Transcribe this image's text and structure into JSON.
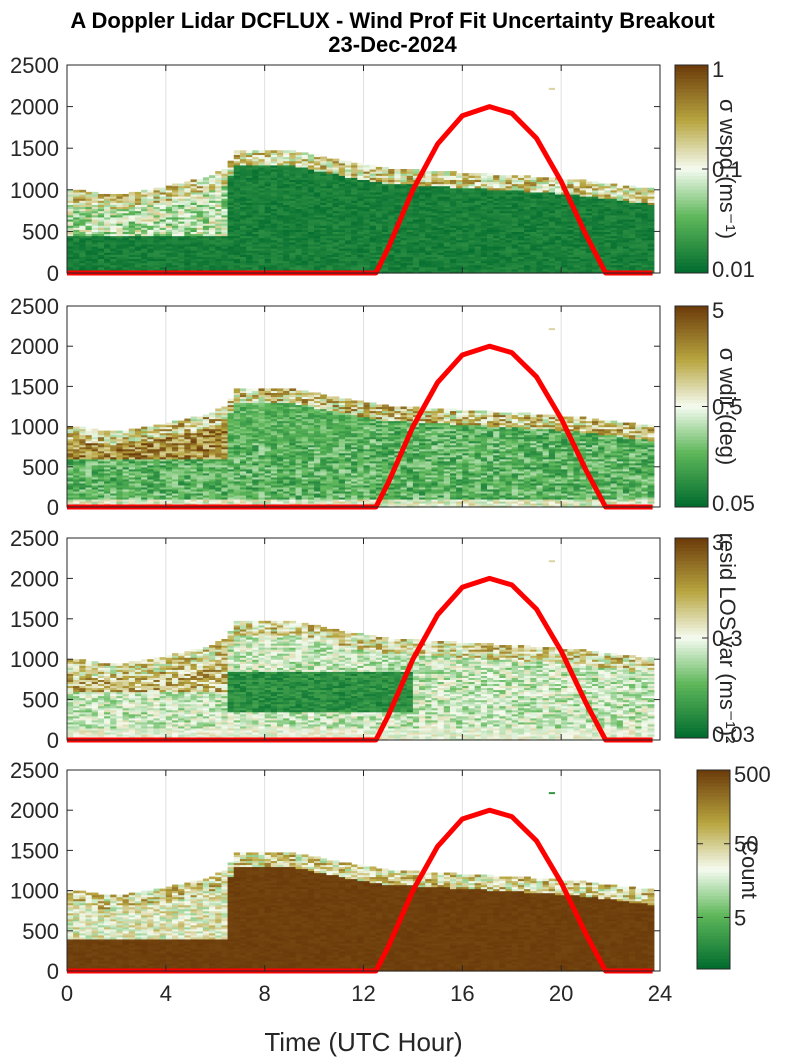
{
  "title_line1": "A Doppler Lidar DCFLUX - Wind Prof Fit Uncertainty Breakout",
  "title_line2": "23-Dec-2024",
  "colors": {
    "low": "#006b2e",
    "mid_low": "#5fb85a",
    "white": "#f5fbf0",
    "mid_high": "#b8a640",
    "high": "#6b3a0a",
    "sun_curve": "#ff0000"
  },
  "chart_data": [
    {
      "type": "heatmap",
      "panel": "wspd",
      "colorbar_label": "σ wspd (ms⁻¹)",
      "colorbar_ticks": [
        "1",
        "0.1",
        "0.01"
      ],
      "colorbar_scale": "log",
      "colorbar_range": [
        0.01,
        1
      ],
      "ylim": [
        0,
        2500
      ],
      "yticks": [
        "0",
        "500",
        "1000",
        "1500",
        "2000",
        "2500"
      ],
      "xlim": [
        0,
        24
      ],
      "xtick_values": [
        0,
        4,
        8,
        12,
        16,
        20,
        24
      ],
      "grid": true,
      "sun_curve": {
        "x": [
          0,
          12.5,
          13,
          14,
          15,
          16,
          17.1,
          18,
          19,
          20,
          21,
          21.8,
          23.7
        ],
        "y": [
          0,
          0,
          300,
          1000,
          1550,
          1890,
          2000,
          1920,
          1620,
          1100,
          460,
          0,
          0
        ]
      }
    },
    {
      "type": "heatmap",
      "panel": "wdir",
      "colorbar_label": "σ wdir (deg)",
      "colorbar_ticks": [
        "5",
        "0.5",
        "0.05"
      ],
      "colorbar_scale": "log",
      "colorbar_range": [
        0.05,
        5
      ],
      "ylim": [
        0,
        2500
      ],
      "yticks": [
        "0",
        "500",
        "1000",
        "1500",
        "2000",
        "2500"
      ],
      "xlim": [
        0,
        24
      ],
      "xtick_values": [
        0,
        4,
        8,
        12,
        16,
        20,
        24
      ],
      "grid": true,
      "sun_curve": {
        "x": [
          0,
          12.5,
          13,
          14,
          15,
          16,
          17.1,
          18,
          19,
          20,
          21,
          21.8,
          23.7
        ],
        "y": [
          0,
          0,
          300,
          1000,
          1550,
          1890,
          2000,
          1920,
          1620,
          1100,
          460,
          0,
          0
        ]
      }
    },
    {
      "type": "heatmap",
      "panel": "resid",
      "colorbar_label": "resid LOS var (ms⁻¹)²",
      "colorbar_ticks": [
        "3",
        "0.3",
        "0.03"
      ],
      "colorbar_scale": "log",
      "colorbar_range": [
        0.03,
        3
      ],
      "ylim": [
        0,
        2500
      ],
      "yticks": [
        "0",
        "500",
        "1000",
        "1500",
        "2000",
        "2500"
      ],
      "xlim": [
        0,
        24
      ],
      "xtick_values": [
        0,
        4,
        8,
        12,
        16,
        20,
        24
      ],
      "grid": true,
      "sun_curve": {
        "x": [
          0,
          12.5,
          13,
          14,
          15,
          16,
          17.1,
          18,
          19,
          20,
          21,
          21.8,
          23.7
        ],
        "y": [
          0,
          0,
          300,
          1000,
          1550,
          1890,
          2000,
          1920,
          1620,
          1100,
          460,
          0,
          0
        ]
      }
    },
    {
      "type": "heatmap",
      "panel": "count",
      "colorbar_label": "Count",
      "colorbar_ticks": [
        "500",
        "50",
        "5"
      ],
      "colorbar_scale": "log",
      "colorbar_range": [
        1,
        500
      ],
      "ylim": [
        0,
        2500
      ],
      "yticks": [
        "0",
        "500",
        "1000",
        "1500",
        "2000",
        "2500"
      ],
      "xlim": [
        0,
        24
      ],
      "xticks": [
        "0",
        "4",
        "8",
        "12",
        "16",
        "20",
        "24"
      ],
      "xtick_values": [
        0,
        4,
        8,
        12,
        16,
        20,
        24
      ],
      "xlabel": "Time (UTC Hour)",
      "grid": true,
      "sun_curve": {
        "x": [
          0,
          12.5,
          13,
          14,
          15,
          16,
          17.1,
          18,
          19,
          20,
          21,
          21.8,
          23.7
        ],
        "y": [
          0,
          0,
          300,
          1000,
          1550,
          1890,
          2000,
          1920,
          1620,
          1100,
          460,
          0,
          0
        ]
      }
    }
  ]
}
